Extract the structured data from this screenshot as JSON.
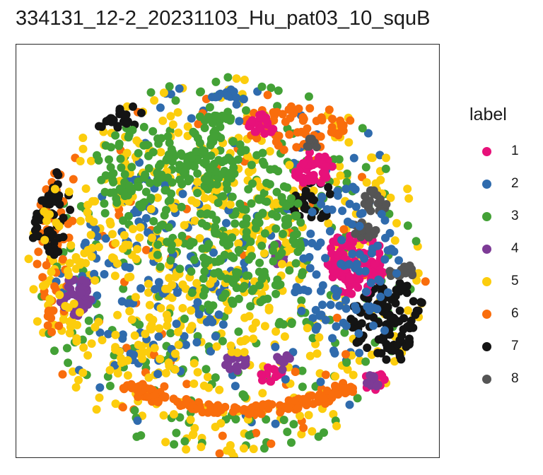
{
  "chart_data": {
    "type": "scatter",
    "title": "334131_12-2_20231103_Hu_pat03_10_squB",
    "xlabel": "",
    "ylabel": "",
    "grid": false,
    "axes_ticks": false,
    "legend": {
      "title": "label",
      "position": "right",
      "entries": [
        {
          "label": "1",
          "color": "#E7117A"
        },
        {
          "label": "2",
          "color": "#2F6BAD"
        },
        {
          "label": "3",
          "color": "#43A136"
        },
        {
          "label": "4",
          "color": "#7D3B96"
        },
        {
          "label": "5",
          "color": "#FCCD0D"
        },
        {
          "label": "6",
          "color": "#F96D0C"
        },
        {
          "label": "7",
          "color": "#141414"
        },
        {
          "label": "8",
          "color": "#555555"
        }
      ]
    },
    "regions": [
      {
        "label": "6",
        "shape": "arc",
        "cx": 0.53,
        "cy": 0.79,
        "r": 0.34,
        "count": 140
      },
      {
        "label": "6",
        "shape": "blob",
        "cx": 0.66,
        "cy": 0.2,
        "rx": 0.12,
        "ry": 0.06,
        "count": 60
      },
      {
        "label": "6",
        "shape": "blob",
        "cx": 0.09,
        "cy": 0.5,
        "rx": 0.04,
        "ry": 0.2,
        "count": 50
      },
      {
        "label": "7",
        "shape": "blob",
        "cx": 0.07,
        "cy": 0.4,
        "rx": 0.06,
        "ry": 0.12,
        "count": 70
      },
      {
        "label": "7",
        "shape": "blob",
        "cx": 0.22,
        "cy": 0.17,
        "rx": 0.08,
        "ry": 0.04,
        "count": 45
      },
      {
        "label": "7",
        "shape": "blob",
        "cx": 0.88,
        "cy": 0.67,
        "rx": 0.09,
        "ry": 0.1,
        "count": 120
      },
      {
        "label": "7",
        "shape": "blob",
        "cx": 0.7,
        "cy": 0.38,
        "rx": 0.05,
        "ry": 0.05,
        "count": 30
      },
      {
        "label": "1",
        "shape": "blob",
        "cx": 0.8,
        "cy": 0.53,
        "rx": 0.07,
        "ry": 0.08,
        "count": 90
      },
      {
        "label": "1",
        "shape": "blob",
        "cx": 0.7,
        "cy": 0.3,
        "rx": 0.05,
        "ry": 0.04,
        "count": 45
      },
      {
        "label": "1",
        "shape": "blob",
        "cx": 0.58,
        "cy": 0.2,
        "rx": 0.03,
        "ry": 0.03,
        "count": 20
      },
      {
        "label": "1",
        "shape": "blob",
        "cx": 0.85,
        "cy": 0.82,
        "rx": 0.03,
        "ry": 0.03,
        "count": 20
      },
      {
        "label": "1",
        "shape": "blob",
        "cx": 0.6,
        "cy": 0.8,
        "rx": 0.03,
        "ry": 0.02,
        "count": 12
      },
      {
        "label": "8",
        "shape": "blob",
        "cx": 0.85,
        "cy": 0.38,
        "rx": 0.03,
        "ry": 0.03,
        "count": 20
      },
      {
        "label": "8",
        "shape": "blob",
        "cx": 0.82,
        "cy": 0.45,
        "rx": 0.03,
        "ry": 0.02,
        "count": 16
      },
      {
        "label": "8",
        "shape": "blob",
        "cx": 0.91,
        "cy": 0.55,
        "rx": 0.03,
        "ry": 0.02,
        "count": 16
      },
      {
        "label": "8",
        "shape": "blob",
        "cx": 0.7,
        "cy": 0.24,
        "rx": 0.02,
        "ry": 0.015,
        "count": 8
      },
      {
        "label": "2",
        "shape": "blob",
        "cx": 0.78,
        "cy": 0.55,
        "rx": 0.12,
        "ry": 0.22,
        "count": 90
      },
      {
        "label": "2",
        "shape": "blob",
        "cx": 0.5,
        "cy": 0.13,
        "rx": 0.04,
        "ry": 0.02,
        "count": 15
      },
      {
        "label": "2",
        "shape": "blob",
        "cx": 0.35,
        "cy": 0.55,
        "rx": 0.2,
        "ry": 0.25,
        "count": 120
      },
      {
        "label": "4",
        "shape": "blob",
        "cx": 0.14,
        "cy": 0.61,
        "rx": 0.04,
        "ry": 0.05,
        "count": 40
      },
      {
        "label": "4",
        "shape": "blob",
        "cx": 0.52,
        "cy": 0.77,
        "rx": 0.03,
        "ry": 0.02,
        "count": 18
      },
      {
        "label": "4",
        "shape": "blob",
        "cx": 0.63,
        "cy": 0.77,
        "rx": 0.02,
        "ry": 0.02,
        "count": 10
      },
      {
        "label": "4",
        "shape": "blob",
        "cx": 0.62,
        "cy": 0.51,
        "rx": 0.02,
        "ry": 0.03,
        "count": 10
      },
      {
        "label": "4",
        "shape": "blob",
        "cx": 0.84,
        "cy": 0.81,
        "rx": 0.02,
        "ry": 0.02,
        "count": 8
      },
      {
        "label": "5",
        "shape": "blob",
        "cx": 0.35,
        "cy": 0.5,
        "rx": 0.3,
        "ry": 0.32,
        "count": 240
      },
      {
        "label": "3",
        "shape": "blob",
        "cx": 0.5,
        "cy": 0.45,
        "rx": 0.18,
        "ry": 0.2,
        "count": 200
      },
      {
        "label": "3",
        "shape": "blob",
        "cx": 0.3,
        "cy": 0.3,
        "rx": 0.12,
        "ry": 0.1,
        "count": 90
      },
      {
        "label": "3",
        "shape": "blob",
        "cx": 0.47,
        "cy": 0.25,
        "rx": 0.06,
        "ry": 0.1,
        "count": 60
      }
    ]
  }
}
